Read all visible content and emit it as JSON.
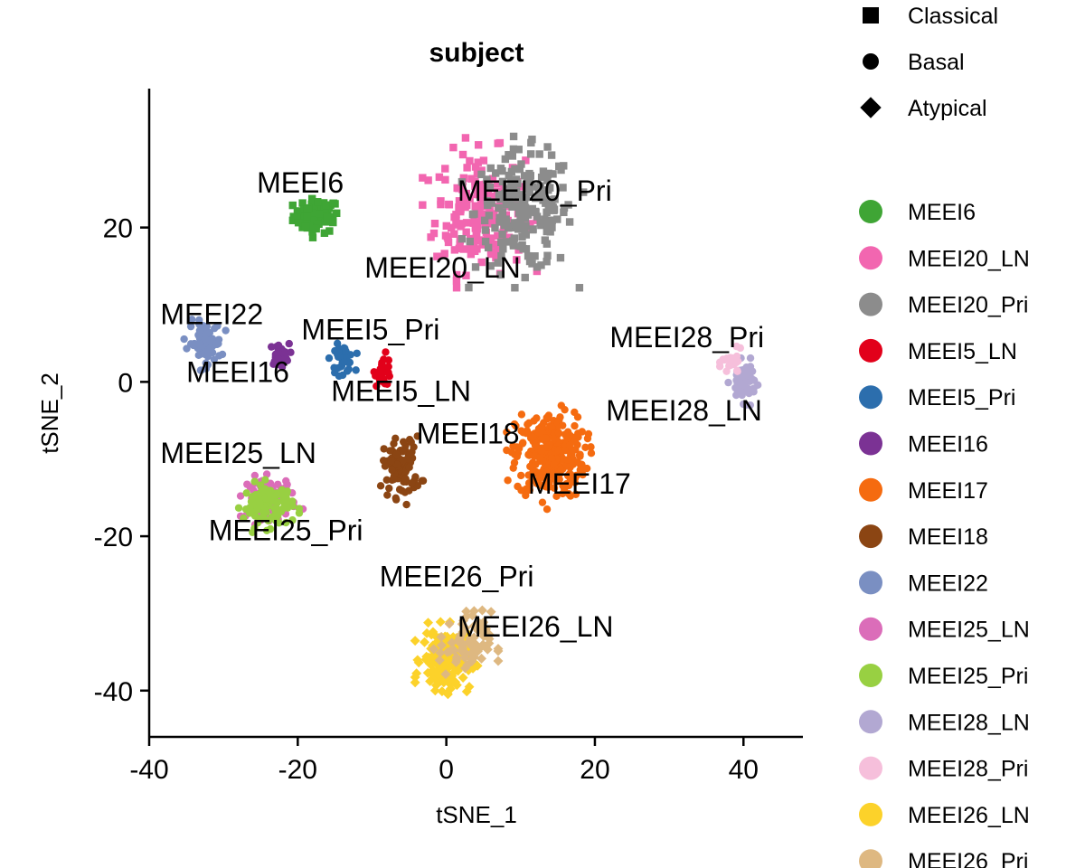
{
  "chart_data": {
    "type": "scatter",
    "title": "subject",
    "xlabel": "tSNE_1",
    "ylabel": "tSNE_2",
    "xlim": [
      -40,
      48
    ],
    "ylim": [
      -46,
      38
    ],
    "x_ticks": [
      -40,
      -20,
      0,
      20,
      40
    ],
    "x_tick_labels": [
      "-40",
      "-20",
      "0",
      "20",
      "40"
    ],
    "y_ticks": [
      -40,
      -20,
      0,
      20
    ],
    "y_tick_labels": [
      "-40",
      "-20",
      "0",
      "20"
    ],
    "grid": false,
    "legend_position": "right",
    "shape_legend": [
      {
        "label": "Classical",
        "shape": "square"
      },
      {
        "label": "Basal",
        "shape": "circle"
      },
      {
        "label": "Atypical",
        "shape": "diamond"
      }
    ],
    "series": [
      {
        "name": "MEEI6",
        "color": "#3FA535",
        "shape": "square",
        "center": [
          -17.5,
          21.5
        ],
        "spread": [
          2.8,
          2.0
        ],
        "count": 70,
        "label": {
          "text": "MEEI6",
          "pos": [
            -25.5,
            24.5
          ]
        }
      },
      {
        "name": "MEEI20_LN",
        "color": "#F266B0",
        "shape": "square",
        "center": [
          4.5,
          22
        ],
        "spread": [
          5.5,
          7.0
        ],
        "count": 200,
        "label": {
          "text": "MEEI20_LN",
          "pos": [
            -11,
            13.5
          ]
        }
      },
      {
        "name": "MEEI20_Pri",
        "color": "#8C8C8C",
        "shape": "square",
        "center": [
          10.5,
          22
        ],
        "spread": [
          6.0,
          7.0
        ],
        "count": 200,
        "label": {
          "text": "MEEI20_Pri",
          "pos": [
            1.5,
            23.5
          ]
        }
      },
      {
        "name": "MEEI5_LN",
        "color": "#E2001A",
        "shape": "circle",
        "center": [
          -8.5,
          1.5
        ],
        "spread": [
          1.0,
          1.8
        ],
        "count": 30,
        "label": {
          "text": "MEEI5_LN",
          "pos": [
            -15.5,
            -2.5
          ]
        }
      },
      {
        "name": "MEEI5_Pri",
        "color": "#2C6EAD",
        "shape": "circle",
        "center": [
          -14,
          3
        ],
        "spread": [
          1.4,
          1.6
        ],
        "count": 40,
        "label": {
          "text": "MEEI5_Pri",
          "pos": [
            -19.5,
            5.5
          ]
        }
      },
      {
        "name": "MEEI16",
        "color": "#7B3294",
        "shape": "circle",
        "center": [
          -22.5,
          3.5
        ],
        "spread": [
          1.2,
          1.3
        ],
        "count": 35,
        "label": {
          "text": "MEEI16",
          "pos": [
            -35,
            0
          ]
        }
      },
      {
        "name": "MEEI17",
        "color": "#F56B10",
        "shape": "circle",
        "center": [
          14,
          -9.5
        ],
        "spread": [
          4.2,
          5.0
        ],
        "count": 300,
        "label": {
          "text": "MEEI17",
          "pos": [
            11,
            -14.5
          ]
        }
      },
      {
        "name": "MEEI18",
        "color": "#8B4513",
        "shape": "circle",
        "center": [
          -6,
          -11
        ],
        "spread": [
          2.3,
          3.5
        ],
        "count": 90,
        "label": {
          "text": "MEEI18",
          "pos": [
            -4,
            -8
          ]
        }
      },
      {
        "name": "MEEI22",
        "color": "#7A8FC2",
        "shape": "circle",
        "center": [
          -32.5,
          5
        ],
        "spread": [
          2.0,
          2.5
        ],
        "count": 80,
        "label": {
          "text": "MEEI22",
          "pos": [
            -38.5,
            7.5
          ]
        }
      },
      {
        "name": "MEEI25_LN",
        "color": "#DB6DB9",
        "shape": "circle",
        "center": [
          -23.5,
          -15
        ],
        "spread": [
          3.0,
          2.5
        ],
        "count": 70,
        "label": {
          "text": "MEEI25_LN",
          "pos": [
            -38.5,
            -10.5
          ]
        }
      },
      {
        "name": "MEEI25_Pri",
        "color": "#98D042",
        "shape": "circle",
        "center": [
          -24,
          -16
        ],
        "spread": [
          3.0,
          2.5
        ],
        "count": 100,
        "label": {
          "text": "MEEI25_Pri",
          "pos": [
            -32,
            -20.5
          ]
        }
      },
      {
        "name": "MEEI28_LN",
        "color": "#B2A8D2",
        "shape": "circle",
        "center": [
          40,
          0
        ],
        "spread": [
          1.5,
          2.2
        ],
        "count": 60,
        "label": {
          "text": "MEEI28_LN",
          "pos": [
            21.5,
            -5
          ]
        }
      },
      {
        "name": "MEEI28_Pri",
        "color": "#F6BFDB",
        "shape": "circle",
        "center": [
          38.5,
          2.5
        ],
        "spread": [
          1.2,
          1.5
        ],
        "count": 25,
        "label": {
          "text": "MEEI28_Pri",
          "pos": [
            22,
            4.5
          ]
        }
      },
      {
        "name": "MEEI26_LN",
        "color": "#FCD22A",
        "shape": "diamond",
        "center": [
          0,
          -36
        ],
        "spread": [
          3.0,
          3.5
        ],
        "count": 200,
        "label": {
          "text": "MEEI26_LN",
          "pos": [
            1.5,
            -33
          ]
        }
      },
      {
        "name": "MEEI26_Pri",
        "color": "#DEB881",
        "shape": "diamond",
        "center": [
          2.5,
          -34
        ],
        "spread": [
          3.2,
          3.8
        ],
        "count": 70,
        "label": {
          "text": "MEEI26_Pri",
          "pos": [
            -9,
            -26.5
          ]
        }
      }
    ]
  }
}
